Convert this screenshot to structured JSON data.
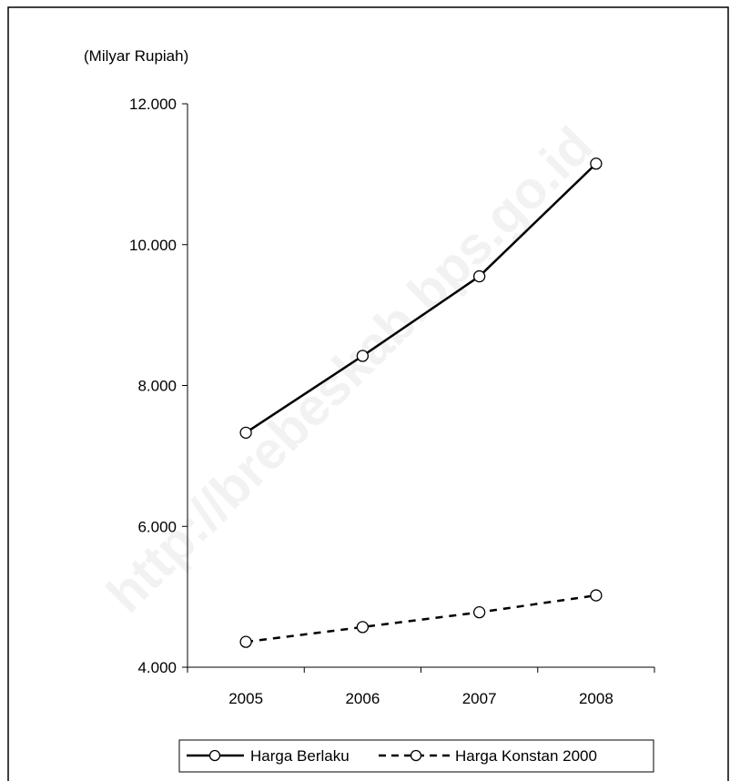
{
  "chart_data": {
    "type": "line",
    "title": "",
    "unit_label": "(Milyar Rupiah)",
    "xlabel": "",
    "ylabel": "",
    "categories": [
      "2005",
      "2006",
      "2007",
      "2008"
    ],
    "ylim": [
      4000,
      12000
    ],
    "yticks": [
      {
        "value": 4000,
        "label": "4.000"
      },
      {
        "value": 6000,
        "label": "6.000"
      },
      {
        "value": 8000,
        "label": "8.000"
      },
      {
        "value": 10000,
        "label": "10.000"
      },
      {
        "value": 12000,
        "label": "12.000"
      }
    ],
    "grid": false,
    "legend_position": "bottom",
    "series": [
      {
        "name": "Harga Berlaku",
        "values": [
          7330,
          8420,
          9550,
          11150
        ],
        "line_style": "solid",
        "marker": "open-circle",
        "color": "#000000"
      },
      {
        "name": "Harga Konstan 2000",
        "values": [
          4360,
          4570,
          4780,
          5020
        ],
        "line_style": "dashed",
        "marker": "open-circle",
        "color": "#000000"
      }
    ]
  },
  "watermark": "http://brebeskab.bps.go.id"
}
